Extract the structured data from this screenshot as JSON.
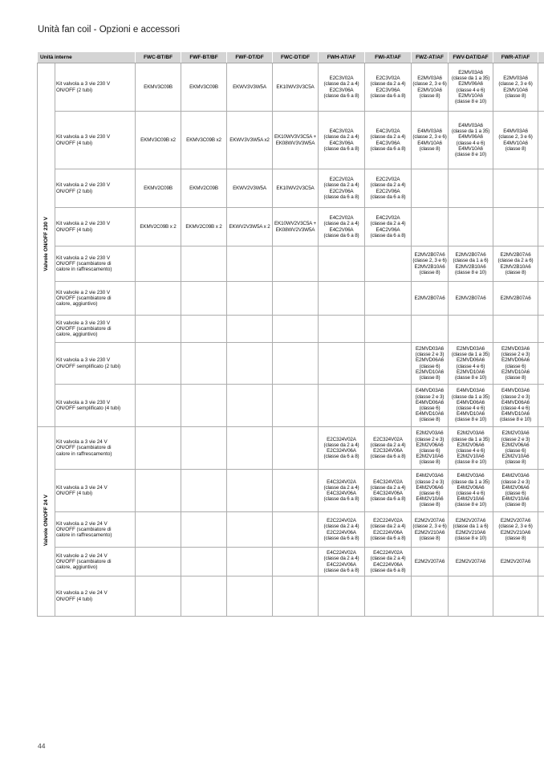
{
  "page": {
    "title": "Unità fan coil - Opzioni e accessori",
    "page_number": "44"
  },
  "colors": {
    "header_bg": "#d4d4d4",
    "grid_border": "#adadad"
  },
  "table": {
    "header_left": "Unità interne",
    "columns": [
      "FWC-BT/BF",
      "FWF-BT/BF",
      "FWF-DT/DF",
      "FWC-DT/DF",
      "FWH-AT/AF",
      "FWI-AT/AF",
      "FWZ-AT/AF",
      "FWV-DAT/DAF",
      "FWR-AT/AF"
    ],
    "groups": [
      {
        "label": "Valvole ON/OFF 230 V",
        "rows": [
          {
            "label": "Kit valvola a 3 vie 230 V\nON/OFF (2 tubi)",
            "cells": [
              "EKMV3C09B",
              "EKMV3C09B",
              "EKWV3V3W5A",
              "EK10WV3V3C5A",
              "E2C3V02A\n(classe da 2 a 4)\nE2C3V06A\n(classe da 6 a 8)",
              "E2C3V02A\n(classe da 2 a 4)\nE2C3V06A\n(classe da 6 a 8)",
              "E2MV03A6\n(classe 2, 3 e 6)\nE2MV10A6\n(classe 8)",
              "E2MV03A6\n(classe da 1 a 35)\nE2MV06A6\n(classe 4 e 6)\nE2MV10A6\n(classe 8 e 10)",
              "E2MV03A6\n(classe 2, 3 e 6)\nE2MV10A6\n(classe 8)"
            ]
          },
          {
            "label": "Kit valvola a 3 vie 230 V\nON/OFF (4 tubi)",
            "cells": [
              "EKMV3C09B x2",
              "EKMV3C09B x2",
              "EKWV3V3W5A x2",
              "EK10WV3V3C5A +\nEK08WV3V3W5A",
              "E4C3V02A\n(classe da 2 a 4)\nE4C3V06A\n(classe da 6 a 8)",
              "E4C3V02A\n(classe da 2 a 4)\nE4C3V06A\n(classe da 6 a 8)",
              "E4MV03A6\n(classe 2, 3 e 6)\nE4MV10A6\n(classe 8)",
              "E4MV03A6\n(classe da 1 a 35)\nE4MV06A6\n(classe 4 e 6)\nE4MV10A6\n(classe 8 e 10)",
              "E4MV03A6\n(classe 2, 3 e 6)\nE4MV10A6\n(classe 8)"
            ]
          },
          {
            "label": "Kit valvola a 2 vie 230 V\nON/OFF (2 tubi)",
            "cells": [
              "EKMV2C09B",
              "EKMV2C09B",
              "EKWV2V3W5A",
              "EK10WV2V3C5A",
              "E2C2V02A\n(classe da 2 a 4)\nE2C2V06A\n(classe da 6 a 8)",
              "E2C2V02A\n(classe da 2 a 4)\nE2C2V06A\n(classe da 6 a 8)",
              "",
              "",
              ""
            ]
          },
          {
            "label": "Kit valvola a 2 vie 230 V\nON/OFF (4 tubi)",
            "cells": [
              "EKMV2C09B x 2",
              "EKMV2C09B x 2",
              "EKWV2V3W5A x 2",
              "EK10WV2V3C5A +\nEK08WV2V3W5A",
              "E4C2V02A\n(classe da 2 a 4)\nE4C2V06A\n(classe da 6 a 8)",
              "E4C2V02A\n(classe da 2 a 4)\nE4C2V06A\n(classe da 6 a 8)",
              "",
              "",
              ""
            ]
          },
          {
            "label": "Kit valvola a 2 vie 230 V\nON/OFF (scambiatore di\ncalore in raffrescamento)",
            "cells": [
              "",
              "",
              "",
              "",
              "",
              "",
              "E2MV2B07A6\n(classe 2, 3 e 6)\nE2MV2B10A6\n(classe 8)",
              "E2MV2B07A6\n(classe da 1 a 6)\nE2MV2B10A6\n(classe 8 e 10)",
              "E2MV2B07A6\n(classe da 2 a 6)\nE2MV2B10A6\n(classe 8)"
            ]
          },
          {
            "label": "Kit valvole a 2 vie 230 V\nON/OFF (scambiatore di\ncalore, aggiuntivo)",
            "cells": [
              "",
              "",
              "",
              "",
              "",
              "",
              "E2MV2B07A6",
              "E2MV2B07A6",
              "E2MV2B07A6"
            ]
          },
          {
            "label": "Kit valvole a 3 vie 230 V\nON/OFF (scambiatore di\ncalore, aggiuntivo)",
            "cells": [
              "",
              "",
              "",
              "",
              "",
              "",
              "",
              "",
              ""
            ]
          },
          {
            "label": "Kit valvola a 3 vie 230 V\nON/OFF semplificato (2 tubi)",
            "cells": [
              "",
              "",
              "",
              "",
              "",
              "",
              "E2MVD03A6\n(classe 2 e 3)\nE2MVD06A6\n(classe 6)\nE2MVD10A6\n(classe 8)",
              "E2MVD03A6\n(classe da 1 a 35)\nE2MVD06A6\n(classe 4 e 6)\nE2MVD10A6\n(classe 8 e 10)",
              "E2MVD03A6\n(classe 2 e 3)\nE2MVD06A6\n(classe 6)\nE2MVD10A6\n(classe 8)"
            ]
          },
          {
            "label": "Kit valvola a 3 vie 230 V\nON/OFF semplificato (4 tubi)",
            "cells": [
              "",
              "",
              "",
              "",
              "",
              "",
              "E4MVD03A6\n(classe 2 e 3)\nE4MVD06A6\n(classe 6)\nE4MVD10A6\n(classe 8)",
              "E4MVD03A6\n(classe da 1 a 35)\nE4MVD06A6\n(classe 4 e 6)\nE4MVD10A6\n(classe 8 e 10)",
              "E4MVD03A6\n(classe 2 e 3)\nE4MVD06A6\n(classe 4 e 6)\nE4MVD10A6\n(classe 8 e 10)"
            ]
          }
        ]
      },
      {
        "label": "Valvole ON/OFF 24 V",
        "rows": [
          {
            "label": "Kit valvola a 3 vie 24 V\nON/OFF (scambiatore di\ncalore in raffrescamento)",
            "cells": [
              "",
              "",
              "",
              "",
              "E2C324V02A\n(classe da 2 a 4)\nE2C324V06A\n(classe da 6 a 8)",
              "E2C324V02A\n(classe da 2 a 4)\nE2C324V06A\n(classe da 6 a 8)",
              "E2M2V03A6\n(classe 2 e 3)\nE2M2V06A6\n(classe 6)\nE2M2V10A6\n(classe 8)",
              "E2M2V03A6\n(classe da 1 a 35)\nE2M2V06A6\n(classe 4 e 6)\nE2M2V10A6\n(classe 8 e 10)",
              "E2M2V03A6\n(classe 2 e 3)\nE2M2V06A6\n(classe 6)\nE2M2V10A6\n(classe 8)"
            ]
          },
          {
            "label": "Kit valvola a 3 vie 24 V\nON/OFF (4 tubi)",
            "cells": [
              "",
              "",
              "",
              "",
              "E4C324V02A\n(classe da 2 a 4)\nE4C324V06A\n(classe da 6 a 8)",
              "E4C324V02A\n(classe da 2 a 4)\nE4C324V06A\n(classe da 6 a 8)",
              "E4M2V03A6\n(classe 2 e 3)\nE4M2V06A6\n(classe 6)\nE4M2V10A6\n(classe 8)",
              "E4M2V03A6\n(classe da 1 a 35)\nE4M2V06A6\n(classe 4 e 6)\nE4M2V10A6\n(classe 8 e 10)",
              "E4M2V03A6\n(classe 2 e 3)\nE4M2V06A6\n(classe 6)\nE4M2V10A6\n(classe 8)"
            ]
          },
          {
            "label": "Kit valvola a 2 vie 24 V\nON/OFF (scambiatore di\ncalore in raffrescamento)",
            "cells": [
              "",
              "",
              "",
              "",
              "E2C224V02A\n(classe da 2 a 4)\nE2C224V06A\n(classe da 6 a 8)",
              "E2C224V02A\n(classe da 2 a 4)\nE2C224V06A\n(classe da 6 a 8)",
              "E2M2V207A6\n(classe 2, 3 e 6)\nE2M2V210A6\n(classe 8)",
              "E2M2V207A6\n(classe da 1 a 6)\nE2M2V210A6\n(classe 8 e 10)",
              "E2M2V207A6\n(classe 2, 3 e 6)\nE2M2V210A6\n(classe 8)"
            ]
          },
          {
            "label": "Kit valvole a 2 vie 24 V\nON/OFF (scambiatore di\ncalore, aggiuntivo)",
            "cells": [
              "",
              "",
              "",
              "",
              "E4C224V02A\n(classe da 2 a 4)\nE4C224V06A\n(classe da 6 a 8)",
              "E4C224V02A\n(classe da 2 a 4)\nE4C224V06A\n(classe da 6 a 8)",
              "E2M2V207A6",
              "E2M2V207A6",
              "E2M2V207A6"
            ]
          },
          {
            "label": "Kit valvola a 2 vie 24 V\nON/OFF (4 tubi)",
            "cells": [
              "",
              "",
              "",
              "",
              "",
              "",
              "",
              "",
              ""
            ]
          }
        ]
      }
    ]
  }
}
